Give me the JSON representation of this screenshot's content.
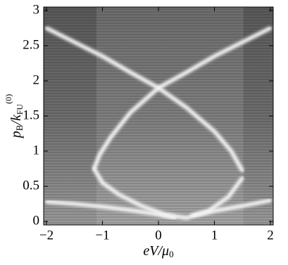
{
  "chart_data": {
    "type": "density",
    "x_label": [
      "eV/μ",
      "0"
    ],
    "y_label": [
      "p",
      "B",
      "/k",
      "FU",
      "(0)"
    ],
    "xlim": [
      -2.05,
      2.05
    ],
    "ylim": [
      -0.05,
      3.05
    ],
    "xticks": [
      {
        "value": -2,
        "label": "−2"
      },
      {
        "value": -1,
        "label": "−1"
      },
      0,
      1,
      2
    ],
    "yticks": [
      0,
      0.5,
      1,
      1.5,
      2,
      2.5,
      3
    ],
    "color": "#f4f4f4",
    "series": [
      {
        "x": [
          -2,
          -1.5,
          -1,
          -0.5,
          0,
          0.5,
          1,
          1.3,
          1.5
        ],
        "values": [
          2.75,
          2.55,
          2.35,
          2.12,
          1.9,
          1.62,
          1.28,
          1.0,
          0.72
        ]
      },
      {
        "x": [
          2,
          1.5,
          1,
          0.5,
          0,
          -0.5,
          -0.85,
          -1.05,
          -1.15
        ],
        "values": [
          2.75,
          2.55,
          2.35,
          2.12,
          1.9,
          1.55,
          1.2,
          0.95,
          0.75
        ]
      },
      {
        "x": [
          -1.15,
          -1.0,
          -0.7,
          -0.3,
          0.1,
          0.5,
          0.9,
          1.25,
          1.5
        ],
        "values": [
          0.75,
          0.55,
          0.38,
          0.22,
          0.1,
          0.05,
          0.15,
          0.35,
          0.62
        ]
      },
      {
        "x": [
          -2,
          -1.5,
          -1,
          -0.5,
          0,
          0.3
        ],
        "values": [
          0.28,
          0.25,
          0.21,
          0.16,
          0.1,
          0.05
        ]
      },
      {
        "x": [
          0.6,
          1,
          1.5,
          2
        ],
        "values": [
          0.08,
          0.15,
          0.22,
          0.3
        ]
      }
    ]
  }
}
